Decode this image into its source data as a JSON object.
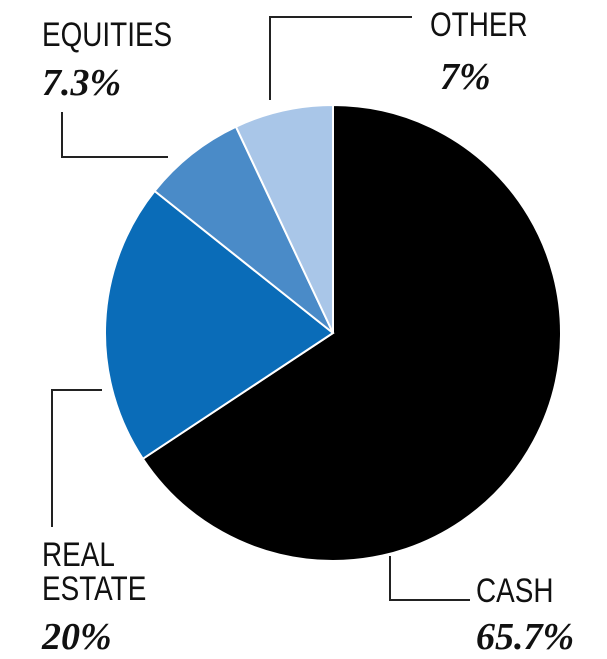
{
  "chart_data": {
    "type": "pie",
    "categories": [
      "CASH",
      "REAL ESTATE",
      "EQUITIES",
      "OTHER"
    ],
    "values": [
      65.7,
      20,
      7.3,
      7
    ],
    "value_labels": [
      "65.7%",
      "20%",
      "7.3%",
      "7%"
    ],
    "colors": [
      "#000000",
      "#0a6cb8",
      "#4a8bc8",
      "#a9c6e8"
    ]
  }
}
